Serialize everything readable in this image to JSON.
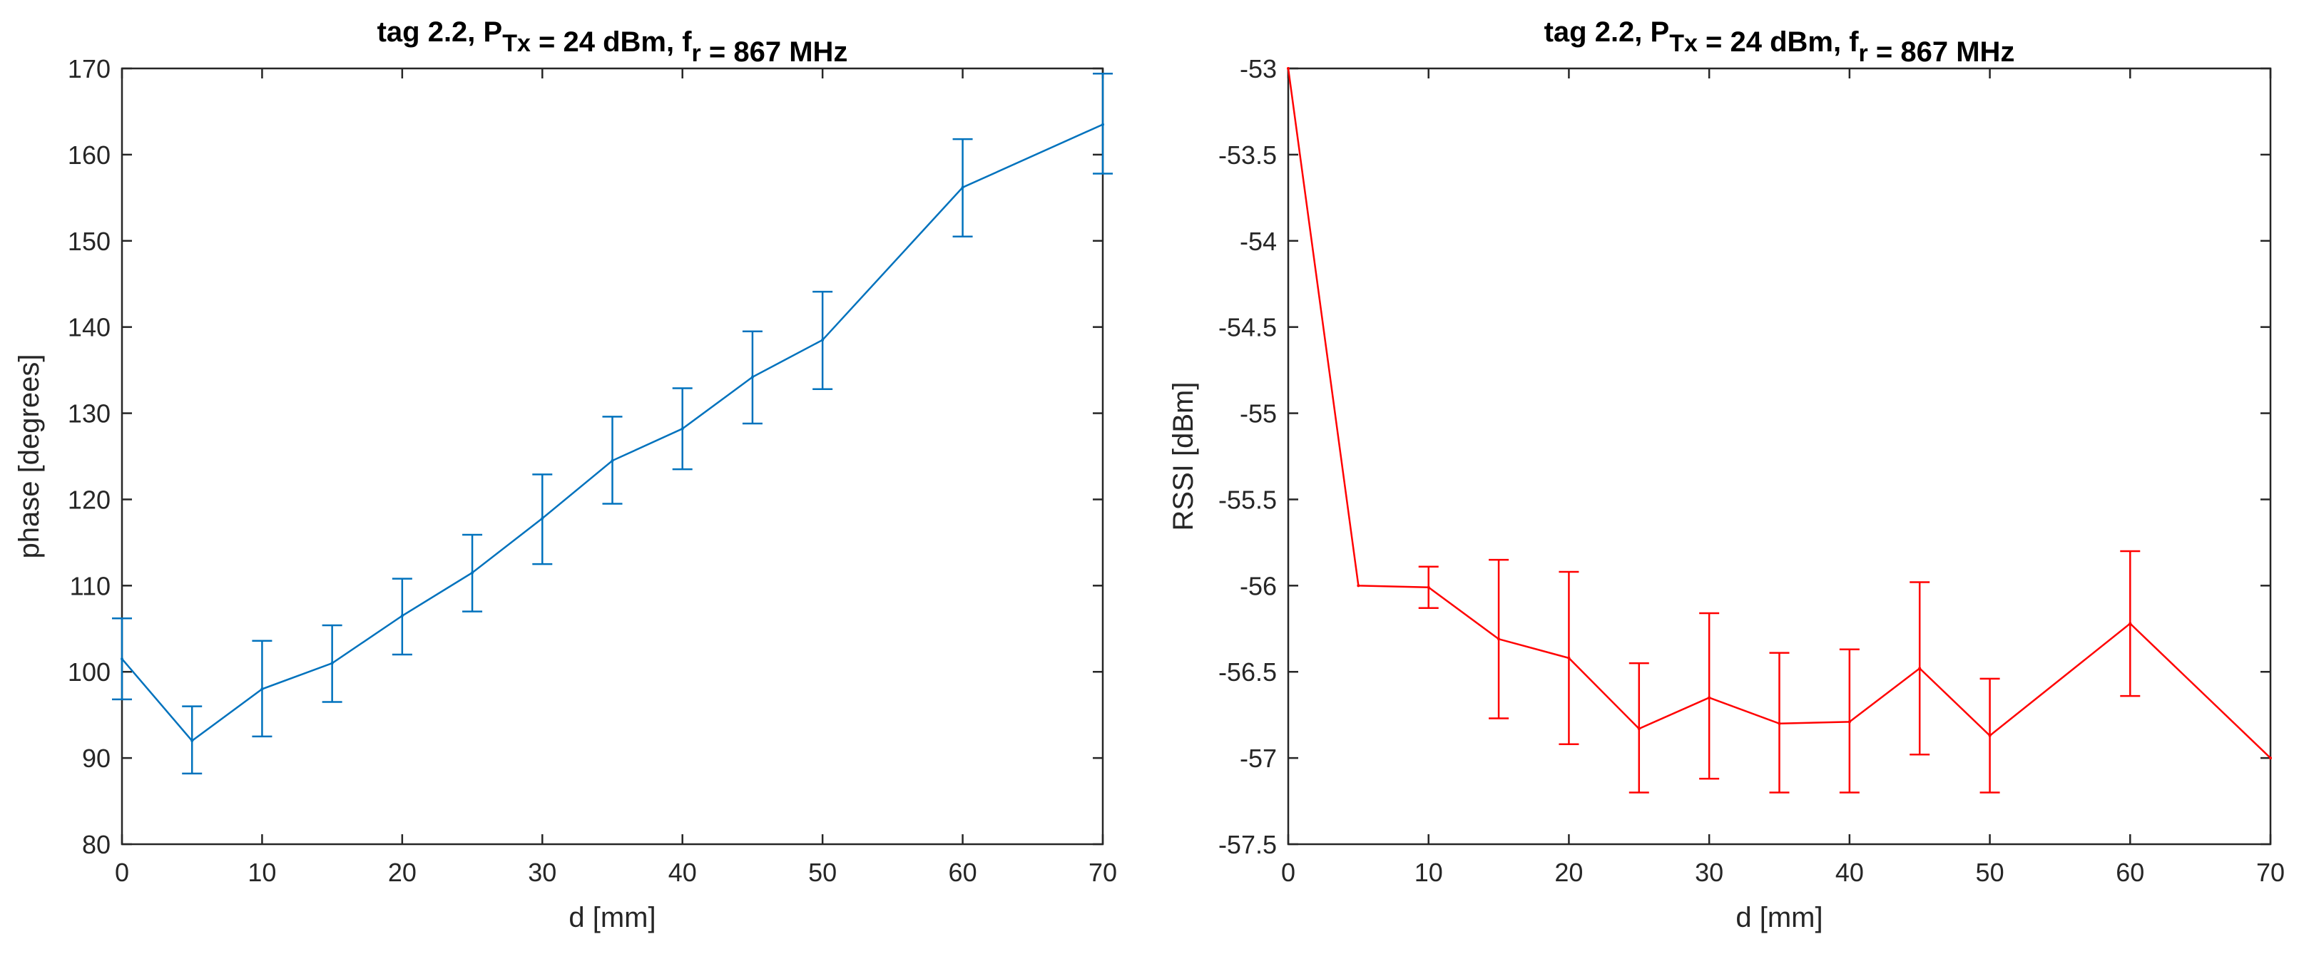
{
  "chart_data": [
    {
      "type": "line",
      "title": {
        "pre": "tag 2.2, P",
        "sub": "Tx",
        "post": " = 24 dBm, f",
        "sub2": "r",
        "end": " = 867 MHz"
      },
      "xlabel": "d [mm]",
      "ylabel": "phase [degrees]",
      "xlim": [
        0,
        70
      ],
      "ylim": [
        80,
        170
      ],
      "xticks": [
        0,
        10,
        20,
        30,
        40,
        50,
        60,
        70
      ],
      "yticks": [
        80,
        90,
        100,
        110,
        120,
        130,
        140,
        150,
        160,
        170
      ],
      "grid": true,
      "color": "#0072BD",
      "series": [
        {
          "name": "phase",
          "x": [
            0,
            5,
            10,
            15,
            20,
            25,
            30,
            35,
            40,
            45,
            50,
            60,
            70
          ],
          "y": [
            101.5,
            92,
            98,
            101,
            106.5,
            111.5,
            117.8,
            124.5,
            128.2,
            134.2,
            138.5,
            156.2,
            163.5
          ],
          "err_low": [
            96.8,
            88.2,
            92.5,
            96.5,
            102,
            107,
            112.5,
            119.5,
            123.5,
            128.8,
            132.8,
            150.5,
            157.8
          ],
          "err_high": [
            106.2,
            96,
            103.6,
            105.4,
            110.8,
            115.9,
            122.9,
            129.6,
            132.9,
            139.5,
            144.1,
            161.8,
            169.4
          ]
        }
      ]
    },
    {
      "type": "line",
      "title": {
        "pre": "tag 2.2, P",
        "sub": "Tx",
        "post": " = 24 dBm, f",
        "sub2": "r",
        "end": " = 867 MHz"
      },
      "xlabel": "d [mm]",
      "ylabel": "RSSI [dBm]",
      "xlim": [
        0,
        70
      ],
      "ylim": [
        -57.5,
        -53
      ],
      "xticks": [
        0,
        10,
        20,
        30,
        40,
        50,
        60,
        70
      ],
      "yticks": [
        -57.5,
        -57,
        -56.5,
        -56,
        -55.5,
        -55,
        -54.5,
        -54,
        -53.5,
        -53
      ],
      "grid": true,
      "color": "#FF0000",
      "series": [
        {
          "name": "RSSI",
          "x": [
            0,
            5,
            10,
            15,
            20,
            25,
            30,
            35,
            40,
            45,
            50,
            60,
            70
          ],
          "y": [
            -53,
            -56,
            -56.01,
            -56.31,
            -56.42,
            -56.83,
            -56.65,
            -56.8,
            -56.79,
            -56.48,
            -56.87,
            -56.22,
            -57.0
          ],
          "err_low": [
            -53,
            -56,
            -56.13,
            -56.77,
            -56.92,
            -57.2,
            -57.12,
            -57.2,
            -57.2,
            -56.98,
            -57.2,
            -56.64,
            -57.0
          ],
          "err_high": [
            -53,
            -56,
            -55.89,
            -55.85,
            -55.92,
            -56.45,
            -56.16,
            -56.39,
            -56.37,
            -55.98,
            -56.54,
            -55.8,
            -57.0
          ]
        }
      ]
    }
  ]
}
